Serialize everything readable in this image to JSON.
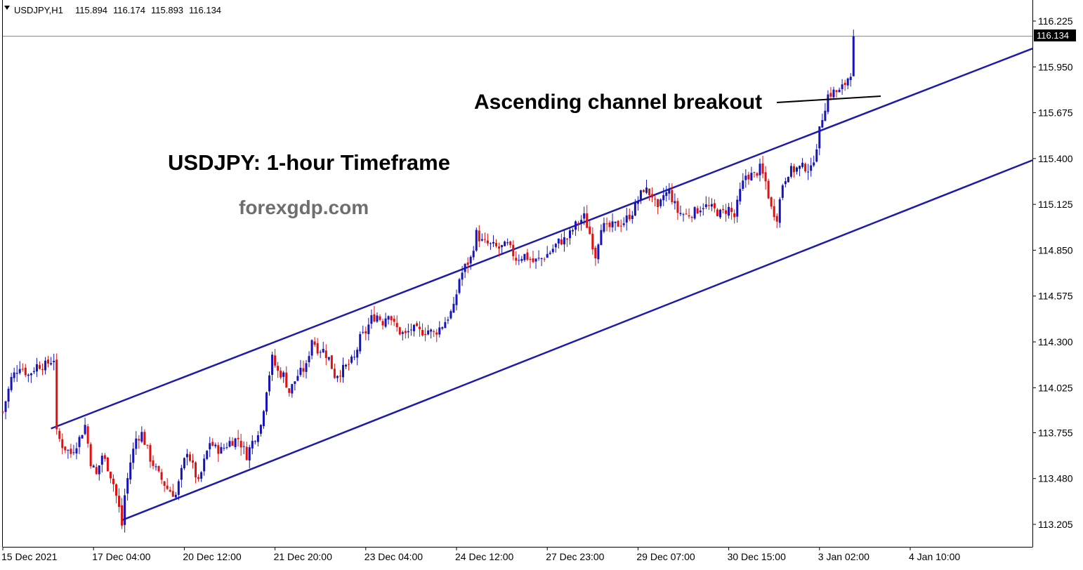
{
  "chart_data": {
    "type": "candlestick",
    "header": {
      "symbol_timeframe": "USDJPY,H1",
      "open": "115.894",
      "high": "116.174",
      "low": "115.893",
      "close": "116.134"
    },
    "current_price": "116.134",
    "y_axis": {
      "ticks": [
        "116.225",
        "115.950",
        "115.675",
        "115.400",
        "115.125",
        "114.850",
        "114.575",
        "114.300",
        "114.025",
        "113.755",
        "113.480",
        "113.205"
      ],
      "ylim": [
        113.13,
        116.26
      ]
    },
    "x_axis": {
      "tick_labels": [
        "15 Dec 2021",
        "17 Dec 04:00",
        "20 Dec 12:00",
        "21 Dec 20:00",
        "23 Dec 04:00",
        "24 Dec 12:00",
        "27 Dec 23:00",
        "29 Dec 07:00",
        "30 Dec 15:00",
        "3 Jan 02:00",
        "4 Jan 10:00"
      ],
      "tick_bar_index": [
        0,
        32,
        64,
        96,
        128,
        160,
        192,
        224,
        256,
        288,
        320
      ]
    },
    "annotations": {
      "title": "USDJPY: 1-hour Timeframe",
      "site": "forexgdp.com",
      "breakout": "Ascending channel breakout"
    },
    "channel": {
      "upper": [
        {
          "bar": 17,
          "price": 113.78
        },
        {
          "bar": 365,
          "price": 116.06
        }
      ],
      "lower": [
        {
          "bar": 42,
          "price": 113.23
        },
        {
          "bar": 365,
          "price": 115.39
        }
      ]
    },
    "colors": {
      "up": "#1414b8",
      "down": "#e01010",
      "channel": "#1c1ca8",
      "price_tag_bg": "#000000",
      "grid_current": "#7a8a9a"
    },
    "candles_close_path": [
      [
        0,
        113.88
      ],
      [
        3,
        114.08
      ],
      [
        6,
        114.16
      ],
      [
        9,
        114.1
      ],
      [
        12,
        114.16
      ],
      [
        15,
        114.16
      ],
      [
        18,
        114.2
      ],
      [
        19,
        113.75
      ],
      [
        21,
        113.68
      ],
      [
        24,
        113.63
      ],
      [
        27,
        113.72
      ],
      [
        29,
        113.8
      ],
      [
        31,
        113.58
      ],
      [
        33,
        113.5
      ],
      [
        35,
        113.62
      ],
      [
        37,
        113.55
      ],
      [
        39,
        113.45
      ],
      [
        41,
        113.3
      ],
      [
        42,
        113.2
      ],
      [
        43,
        113.38
      ],
      [
        45,
        113.58
      ],
      [
        47,
        113.72
      ],
      [
        49,
        113.75
      ],
      [
        52,
        113.6
      ],
      [
        55,
        113.5
      ],
      [
        58,
        113.42
      ],
      [
        61,
        113.38
      ],
      [
        63,
        113.52
      ],
      [
        65,
        113.65
      ],
      [
        67,
        113.55
      ],
      [
        69,
        113.45
      ],
      [
        71,
        113.58
      ],
      [
        73,
        113.7
      ],
      [
        75,
        113.66
      ],
      [
        77,
        113.65
      ],
      [
        80,
        113.7
      ],
      [
        83,
        113.72
      ],
      [
        86,
        113.62
      ],
      [
        88,
        113.7
      ],
      [
        91,
        113.8
      ],
      [
        93,
        114.02
      ],
      [
        95,
        114.2
      ],
      [
        97,
        114.12
      ],
      [
        99,
        114.1
      ],
      [
        101,
        114.0
      ],
      [
        104,
        114.1
      ],
      [
        107,
        114.15
      ],
      [
        109,
        114.32
      ],
      [
        111,
        114.26
      ],
      [
        113,
        114.25
      ],
      [
        115,
        114.2
      ],
      [
        117,
        114.1
      ],
      [
        119,
        114.12
      ],
      [
        121,
        114.15
      ],
      [
        124,
        114.2
      ],
      [
        126,
        114.32
      ],
      [
        128,
        114.36
      ],
      [
        130,
        114.44
      ],
      [
        132,
        114.46
      ],
      [
        134,
        114.42
      ],
      [
        136,
        114.48
      ],
      [
        138,
        114.4
      ],
      [
        140,
        114.36
      ],
      [
        142,
        114.34
      ],
      [
        144,
        114.38
      ],
      [
        147,
        114.36
      ],
      [
        150,
        114.37
      ],
      [
        152,
        114.35
      ],
      [
        155,
        114.4
      ],
      [
        157,
        114.45
      ],
      [
        159,
        114.5
      ],
      [
        161,
        114.68
      ],
      [
        163,
        114.75
      ],
      [
        165,
        114.8
      ],
      [
        167,
        114.95
      ],
      [
        169,
        114.9
      ],
      [
        172,
        114.88
      ],
      [
        175,
        114.86
      ],
      [
        178,
        114.88
      ],
      [
        181,
        114.8
      ],
      [
        184,
        114.82
      ],
      [
        187,
        114.78
      ],
      [
        190,
        114.8
      ],
      [
        193,
        114.84
      ],
      [
        196,
        114.9
      ],
      [
        199,
        114.92
      ],
      [
        202,
        115.0
      ],
      [
        205,
        115.05
      ],
      [
        207,
        114.95
      ],
      [
        209,
        114.82
      ],
      [
        211,
        115.0
      ],
      [
        213,
        114.98
      ],
      [
        216,
        115.0
      ],
      [
        219,
        115.02
      ],
      [
        222,
        115.08
      ],
      [
        224,
        115.15
      ],
      [
        226,
        115.22
      ],
      [
        229,
        115.18
      ],
      [
        231,
        115.08
      ],
      [
        233,
        115.18
      ],
      [
        235,
        115.2
      ],
      [
        238,
        115.08
      ],
      [
        241,
        115.06
      ],
      [
        244,
        115.08
      ],
      [
        247,
        115.12
      ],
      [
        250,
        115.1
      ],
      [
        253,
        115.07
      ],
      [
        256,
        115.1
      ],
      [
        258,
        115.05
      ],
      [
        260,
        115.2
      ],
      [
        262,
        115.3
      ],
      [
        265,
        115.3
      ],
      [
        267,
        115.34
      ],
      [
        269,
        115.26
      ],
      [
        271,
        115.1
      ],
      [
        273,
        115.05
      ],
      [
        275,
        115.25
      ],
      [
        277,
        115.32
      ],
      [
        280,
        115.34
      ],
      [
        283,
        115.35
      ],
      [
        285,
        115.33
      ],
      [
        287,
        115.48
      ],
      [
        289,
        115.65
      ],
      [
        291,
        115.78
      ],
      [
        293,
        115.8
      ],
      [
        295,
        115.8
      ],
      [
        297,
        115.85
      ],
      [
        299,
        115.92
      ],
      [
        300,
        116.134
      ]
    ]
  }
}
